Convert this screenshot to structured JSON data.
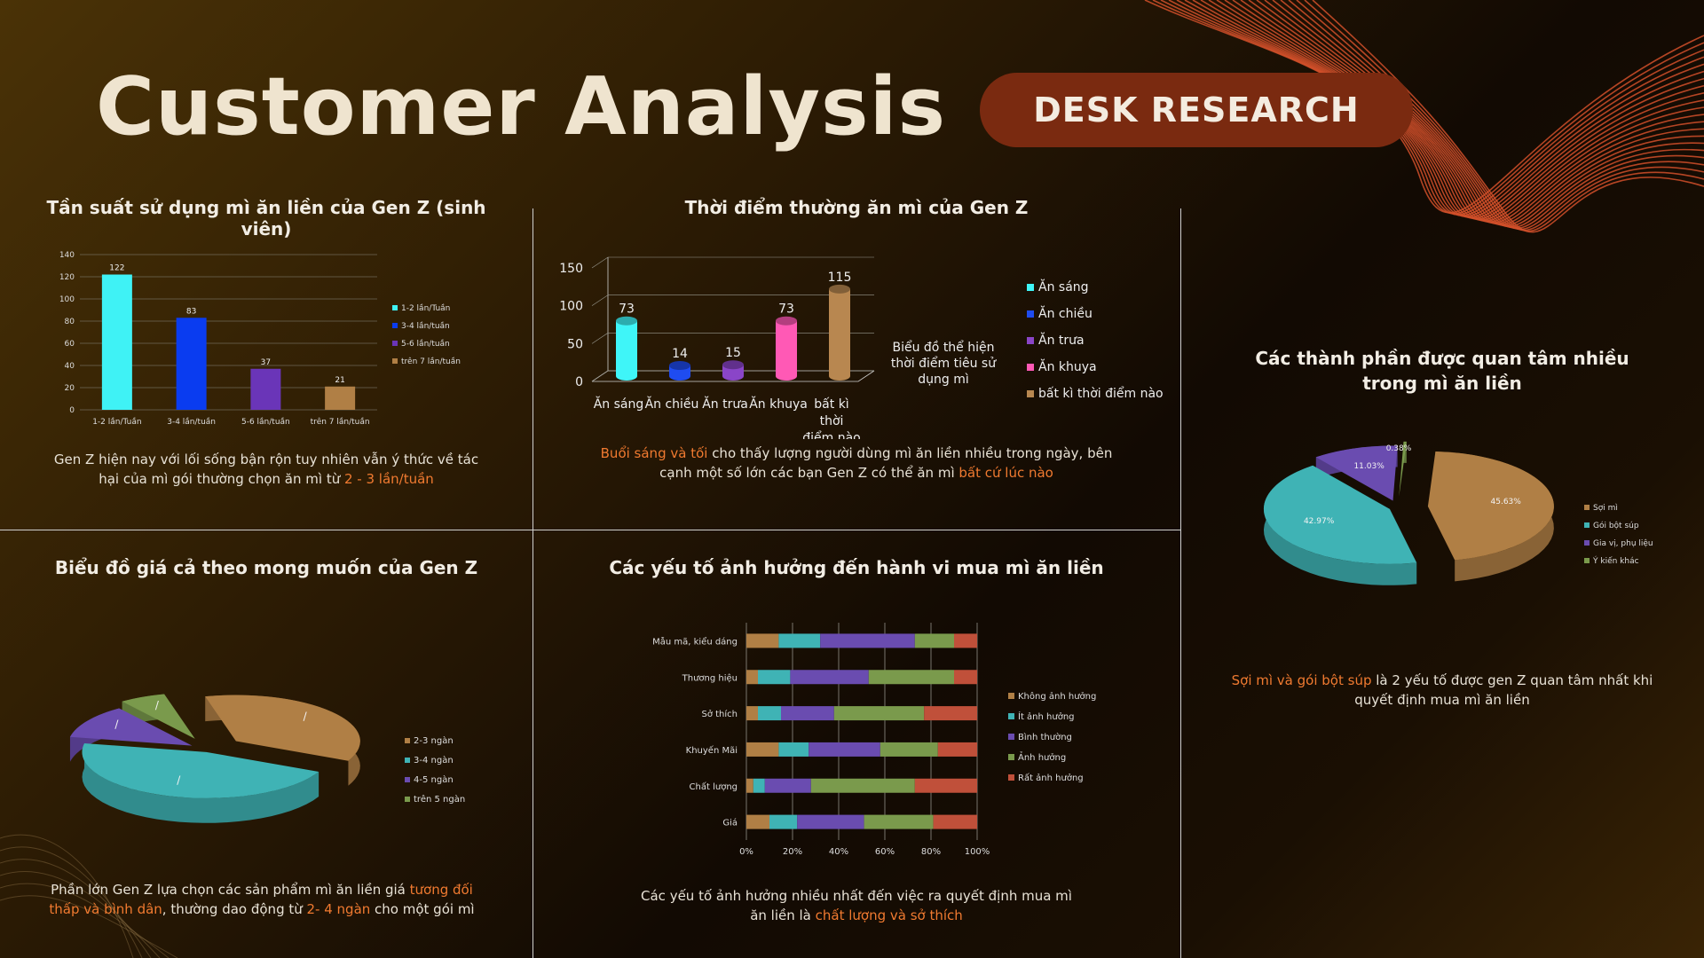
{
  "header": {
    "title": "Customer Analysis",
    "badge": "DESK RESEARCH"
  },
  "colors": {
    "accent": "#f07a30",
    "badge_bg": "#7a2a10",
    "title": "#efe4cf"
  },
  "panels": {
    "frequency": {
      "title": "Tần suất sử dụng mì ăn liền của Gen Z (sinh viên)",
      "caption_part1": "Gen Z hiện nay với lối sống bận rộn tuy nhiên vẫn ý thức về tác hại của mì gói thường chọn ăn mì từ ",
      "caption_highlight": "2 - 3 lần/tuần"
    },
    "time": {
      "title": "Thời điểm thường ăn mì của Gen Z",
      "caption_highlight1": "Buổi sáng và tối",
      "caption_part1": " cho thấy lượng người dùng mì ăn liền nhiều trong ngày, bên cạnh một số lớn các bạn Gen Z có thể ăn mì ",
      "caption_highlight2": "bất cứ lúc nào"
    },
    "price": {
      "title": "Biểu đồ giá cả theo mong muốn của Gen Z",
      "caption_part1": "Phần lớn Gen Z lựa chọn các sản phẩm mì ăn liền giá ",
      "caption_highlight1": "tương đối thấp và bình dân",
      "caption_part2": ", thường dao động từ ",
      "caption_highlight2": "2- 4 ngàn",
      "caption_part3": " cho một gói mì"
    },
    "factors": {
      "title": "Các yếu tố ảnh hưởng đến hành vi mua mì ăn liền",
      "caption_part1": "Các yếu tố ảnh hưởng nhiều nhất đến việc ra quyết định mua mì ăn liền là ",
      "caption_highlight": "chất lượng và sở thích"
    },
    "components": {
      "title": "Các thành phần được quan tâm nhiều trong mì ăn liền",
      "caption_highlight": "Sợi mì và gói bột súp",
      "caption_part1": " là 2 yếu tố được gen Z quan tâm nhất khi quyết định mua mì ăn liền"
    }
  },
  "chart_data": [
    {
      "id": "frequency",
      "type": "bar",
      "categories": [
        "1-2 lần/Tuần",
        "3-4 lần/tuần",
        "5-6 lần/tuần",
        "trên 7 lần/tuần"
      ],
      "values": [
        122,
        83,
        37,
        21
      ],
      "colors": [
        "#3ff2f5",
        "#0a3cf0",
        "#6a35b8",
        "#b07f45"
      ],
      "ylim": [
        0,
        140
      ],
      "yticks": [
        0,
        20,
        40,
        60,
        80,
        100,
        120,
        140
      ],
      "legend": [
        "1-2 lần/Tuần",
        "3-4 lần/tuần",
        "5-6 lần/tuần",
        "trên 7 lần/tuần"
      ],
      "legend_position": "right",
      "grid": true
    },
    {
      "id": "time",
      "type": "bar",
      "style": "3d-cylinder",
      "categories": [
        "Ăn sáng",
        "Ăn chiều",
        "Ăn trưa",
        "Ăn khuya",
        "bất kì thời điểm nào"
      ],
      "values": [
        73,
        14,
        15,
        73,
        115
      ],
      "colors": [
        "#3ff5f8",
        "#1f4cf0",
        "#8a45c8",
        "#ff59b5",
        "#b88750"
      ],
      "ylim": [
        0,
        150
      ],
      "yticks": [
        0,
        50,
        100,
        150
      ],
      "legend": [
        "Ăn sáng",
        "Ăn chiều",
        "Ăn trưa",
        "Ăn khuya",
        "bất kì thời điểm nào"
      ],
      "annotation": "Biểu đồ thể hiện thời điểm tiêu sử dụng mì",
      "legend_position": "right"
    },
    {
      "id": "price",
      "type": "pie",
      "style": "3d-exploded",
      "labels": [
        "2-3 ngàn",
        "3-4 ngàn",
        "4-5 ngàn",
        "trên 5 ngàn"
      ],
      "values": [
        36,
        46,
        12,
        6
      ],
      "slice_label": "/",
      "colors": [
        "#b07f45",
        "#3fb3b5",
        "#6a4cb0",
        "#7a9a4c"
      ],
      "legend_position": "right"
    },
    {
      "id": "factors",
      "type": "bar",
      "style": "stacked-horizontal-100",
      "categories": [
        "Mẫu mã, kiểu dáng",
        "Thương hiệu",
        "Sở thích",
        "Khuyến Mãi",
        "Chất lượng",
        "Giá"
      ],
      "series": [
        {
          "name": "Không ảnh hưởng",
          "color": "#b07f45",
          "values": [
            14,
            5,
            5,
            14,
            3,
            10
          ]
        },
        {
          "name": "Ít ảnh hưởng",
          "color": "#3fb3b5",
          "values": [
            18,
            14,
            10,
            13,
            5,
            12
          ]
        },
        {
          "name": "Bình thường",
          "color": "#6a4cb0",
          "values": [
            41,
            34,
            23,
            31,
            20,
            29
          ]
        },
        {
          "name": "Ảnh hưởng",
          "color": "#7a9a4c",
          "values": [
            17,
            37,
            39,
            25,
            45,
            30
          ]
        },
        {
          "name": "Rất ảnh hưởng",
          "color": "#c0503a",
          "values": [
            10,
            10,
            23,
            17,
            27,
            19
          ]
        }
      ],
      "xticks": [
        "0%",
        "20%",
        "40%",
        "60%",
        "80%",
        "100%"
      ],
      "legend_position": "right"
    },
    {
      "id": "components",
      "type": "pie",
      "style": "3d-exploded",
      "labels": [
        "Sợi mì",
        "Gói bột súp",
        "Gia vị, phụ liệu",
        "Ý kiến khác"
      ],
      "values": [
        45.63,
        42.97,
        11.03,
        0.38
      ],
      "value_labels": [
        "45.63%",
        "42.97%",
        "11.03%",
        "0.38%"
      ],
      "colors": [
        "#b07f45",
        "#3fb3b5",
        "#6a4cb0",
        "#7a9a4c"
      ],
      "legend_position": "right"
    }
  ]
}
